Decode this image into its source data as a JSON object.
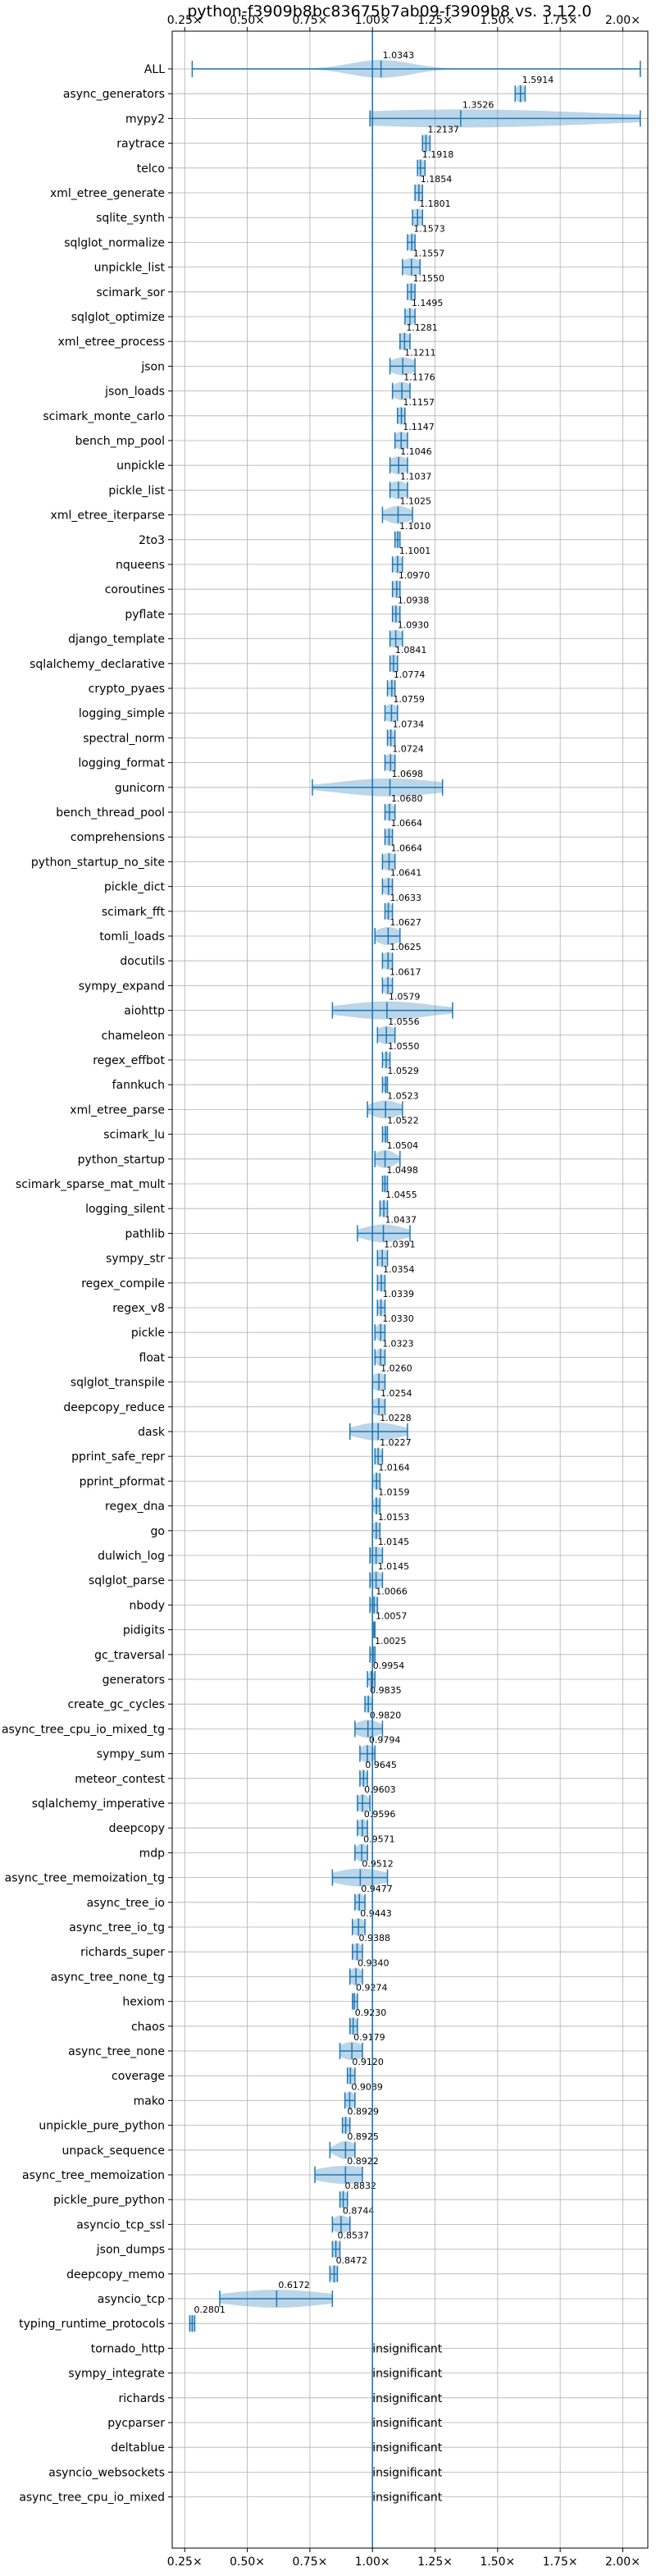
{
  "chart_data": {
    "type": "violin",
    "title": "python-f3909b8bc83675b7ab09-f3909b8 vs. 3.12.0",
    "xlabel": "",
    "ylabel": "",
    "xlim": [
      0.2,
      2.1
    ],
    "x_ticks": [
      0.25,
      0.5,
      0.75,
      1.0,
      1.25,
      1.5,
      1.75,
      2.0
    ],
    "x_tick_labels": [
      "0.25×",
      "0.50×",
      "0.75×",
      "1.00×",
      "1.25×",
      "1.50×",
      "1.75×",
      "2.00×"
    ],
    "reference_line": 1.0,
    "grid": true,
    "colors": {
      "violin": "#1f77b4",
      "reference": "#1f77b4",
      "grid": "#b0b0b0"
    },
    "insignificant_label": "insignificant",
    "benchmarks": [
      {
        "name": "ALL",
        "value": 1.0343,
        "label": "1.0343",
        "min": 0.28,
        "max": 2.07,
        "spread": 0.12
      },
      {
        "name": "async_generators",
        "value": 1.5914,
        "label": "1.5914",
        "min": 1.57,
        "max": 1.61,
        "spread": 0.02
      },
      {
        "name": "mypy2",
        "value": 1.3526,
        "label": "1.3526",
        "min": 0.99,
        "max": 2.07,
        "spread": 0.55
      },
      {
        "name": "raytrace",
        "value": 1.2137,
        "label": "1.2137",
        "min": 1.2,
        "max": 1.23,
        "spread": 0.02
      },
      {
        "name": "telco",
        "value": 1.1918,
        "label": "1.1918",
        "min": 1.18,
        "max": 1.21,
        "spread": 0.02
      },
      {
        "name": "xml_etree_generate",
        "value": 1.1854,
        "label": "1.1854",
        "min": 1.17,
        "max": 1.2,
        "spread": 0.02
      },
      {
        "name": "sqlite_synth",
        "value": 1.1801,
        "label": "1.1801",
        "min": 1.16,
        "max": 1.2,
        "spread": 0.025
      },
      {
        "name": "sqlglot_normalize",
        "value": 1.1573,
        "label": "1.1573",
        "min": 1.14,
        "max": 1.17,
        "spread": 0.02
      },
      {
        "name": "unpickle_list",
        "value": 1.1557,
        "label": "1.1557",
        "min": 1.12,
        "max": 1.19,
        "spread": 0.04
      },
      {
        "name": "scimark_sor",
        "value": 1.155,
        "label": "1.1550",
        "min": 1.14,
        "max": 1.17,
        "spread": 0.02
      },
      {
        "name": "sqlglot_optimize",
        "value": 1.1495,
        "label": "1.1495",
        "min": 1.13,
        "max": 1.17,
        "spread": 0.02
      },
      {
        "name": "xml_etree_process",
        "value": 1.1281,
        "label": "1.1281",
        "min": 1.11,
        "max": 1.15,
        "spread": 0.025
      },
      {
        "name": "json",
        "value": 1.1211,
        "label": "1.1211",
        "min": 1.07,
        "max": 1.17,
        "spread": 0.05
      },
      {
        "name": "json_loads",
        "value": 1.1176,
        "label": "1.1176",
        "min": 1.08,
        "max": 1.15,
        "spread": 0.04
      },
      {
        "name": "scimark_monte_carlo",
        "value": 1.1157,
        "label": "1.1157",
        "min": 1.1,
        "max": 1.13,
        "spread": 0.02
      },
      {
        "name": "bench_mp_pool",
        "value": 1.1147,
        "label": "1.1147",
        "min": 1.09,
        "max": 1.14,
        "spread": 0.03
      },
      {
        "name": "unpickle",
        "value": 1.1046,
        "label": "1.1046",
        "min": 1.07,
        "max": 1.14,
        "spread": 0.04
      },
      {
        "name": "pickle_list",
        "value": 1.1037,
        "label": "1.1037",
        "min": 1.07,
        "max": 1.14,
        "spread": 0.04
      },
      {
        "name": "xml_etree_iterparse",
        "value": 1.1025,
        "label": "1.1025",
        "min": 1.04,
        "max": 1.16,
        "spread": 0.05
      },
      {
        "name": "2to3",
        "value": 1.101,
        "label": "1.1010",
        "min": 1.09,
        "max": 1.11,
        "spread": 0.012
      },
      {
        "name": "nqueens",
        "value": 1.1001,
        "label": "1.1001",
        "min": 1.08,
        "max": 1.12,
        "spread": 0.02
      },
      {
        "name": "coroutines",
        "value": 1.097,
        "label": "1.0970",
        "min": 1.08,
        "max": 1.11,
        "spread": 0.02
      },
      {
        "name": "pyflate",
        "value": 1.0938,
        "label": "1.0938",
        "min": 1.08,
        "max": 1.11,
        "spread": 0.02
      },
      {
        "name": "django_template",
        "value": 1.093,
        "label": "1.0930",
        "min": 1.07,
        "max": 1.12,
        "spread": 0.03
      },
      {
        "name": "sqlalchemy_declarative",
        "value": 1.0841,
        "label": "1.0841",
        "min": 1.07,
        "max": 1.1,
        "spread": 0.02
      },
      {
        "name": "crypto_pyaes",
        "value": 1.0774,
        "label": "1.0774",
        "min": 1.06,
        "max": 1.09,
        "spread": 0.015
      },
      {
        "name": "logging_simple",
        "value": 1.0759,
        "label": "1.0759",
        "min": 1.05,
        "max": 1.1,
        "spread": 0.03
      },
      {
        "name": "spectral_norm",
        "value": 1.0734,
        "label": "1.0734",
        "min": 1.06,
        "max": 1.09,
        "spread": 0.015
      },
      {
        "name": "logging_format",
        "value": 1.0724,
        "label": "1.0724",
        "min": 1.05,
        "max": 1.09,
        "spread": 0.025
      },
      {
        "name": "gunicorn",
        "value": 1.0698,
        "label": "1.0698",
        "min": 0.76,
        "max": 1.28,
        "spread": 0.2
      },
      {
        "name": "bench_thread_pool",
        "value": 1.068,
        "label": "1.0680",
        "min": 1.05,
        "max": 1.09,
        "spread": 0.02
      },
      {
        "name": "comprehensions",
        "value": 1.0664,
        "label": "1.0664",
        "min": 1.05,
        "max": 1.08,
        "spread": 0.02
      },
      {
        "name": "python_startup_no_site",
        "value": 1.0664,
        "label": "1.0664",
        "min": 1.04,
        "max": 1.09,
        "spread": 0.03
      },
      {
        "name": "pickle_dict",
        "value": 1.0641,
        "label": "1.0641",
        "min": 1.04,
        "max": 1.08,
        "spread": 0.025
      },
      {
        "name": "scimark_fft",
        "value": 1.0633,
        "label": "1.0633",
        "min": 1.05,
        "max": 1.08,
        "spread": 0.015
      },
      {
        "name": "tomli_loads",
        "value": 1.0627,
        "label": "1.0627",
        "min": 1.01,
        "max": 1.11,
        "spread": 0.05
      },
      {
        "name": "docutils",
        "value": 1.0625,
        "label": "1.0625",
        "min": 1.04,
        "max": 1.08,
        "spread": 0.025
      },
      {
        "name": "sympy_expand",
        "value": 1.0617,
        "label": "1.0617",
        "min": 1.04,
        "max": 1.08,
        "spread": 0.02
      },
      {
        "name": "aiohttp",
        "value": 1.0579,
        "label": "1.0579",
        "min": 0.84,
        "max": 1.32,
        "spread": 0.18
      },
      {
        "name": "chameleon",
        "value": 1.0556,
        "label": "1.0556",
        "min": 1.02,
        "max": 1.09,
        "spread": 0.04
      },
      {
        "name": "regex_effbot",
        "value": 1.055,
        "label": "1.0550",
        "min": 1.04,
        "max": 1.07,
        "spread": 0.012
      },
      {
        "name": "fannkuch",
        "value": 1.0529,
        "label": "1.0529",
        "min": 1.04,
        "max": 1.06,
        "spread": 0.01
      },
      {
        "name": "xml_etree_parse",
        "value": 1.0523,
        "label": "1.0523",
        "min": 0.98,
        "max": 1.12,
        "spread": 0.06
      },
      {
        "name": "scimark_lu",
        "value": 1.0522,
        "label": "1.0522",
        "min": 1.04,
        "max": 1.06,
        "spread": 0.012
      },
      {
        "name": "python_startup",
        "value": 1.0504,
        "label": "1.0504",
        "min": 1.01,
        "max": 1.11,
        "spread": 0.04
      },
      {
        "name": "scimark_sparse_mat_mult",
        "value": 1.0498,
        "label": "1.0498",
        "min": 1.04,
        "max": 1.06,
        "spread": 0.012
      },
      {
        "name": "logging_silent",
        "value": 1.0455,
        "label": "1.0455",
        "min": 1.03,
        "max": 1.06,
        "spread": 0.015
      },
      {
        "name": "pathlib",
        "value": 1.0437,
        "label": "1.0437",
        "min": 0.94,
        "max": 1.15,
        "spread": 0.08
      },
      {
        "name": "sympy_str",
        "value": 1.0391,
        "label": "1.0391",
        "min": 1.02,
        "max": 1.06,
        "spread": 0.025
      },
      {
        "name": "regex_compile",
        "value": 1.0354,
        "label": "1.0354",
        "min": 1.02,
        "max": 1.05,
        "spread": 0.015
      },
      {
        "name": "regex_v8",
        "value": 1.0339,
        "label": "1.0339",
        "min": 1.02,
        "max": 1.05,
        "spread": 0.012
      },
      {
        "name": "pickle",
        "value": 1.033,
        "label": "1.0330",
        "min": 1.01,
        "max": 1.05,
        "spread": 0.02
      },
      {
        "name": "float",
        "value": 1.0323,
        "label": "1.0323",
        "min": 1.01,
        "max": 1.05,
        "spread": 0.02
      },
      {
        "name": "sqlglot_transpile",
        "value": 1.026,
        "label": "1.0260",
        "min": 1.0,
        "max": 1.05,
        "spread": 0.03
      },
      {
        "name": "deepcopy_reduce",
        "value": 1.0254,
        "label": "1.0254",
        "min": 1.0,
        "max": 1.05,
        "spread": 0.03
      },
      {
        "name": "dask",
        "value": 1.0228,
        "label": "1.0228",
        "min": 0.91,
        "max": 1.14,
        "spread": 0.09
      },
      {
        "name": "pprint_safe_repr",
        "value": 1.0227,
        "label": "1.0227",
        "min": 1.01,
        "max": 1.04,
        "spread": 0.015
      },
      {
        "name": "pprint_pformat",
        "value": 1.0164,
        "label": "1.0164",
        "min": 1.0,
        "max": 1.03,
        "spread": 0.015
      },
      {
        "name": "regex_dna",
        "value": 1.0159,
        "label": "1.0159",
        "min": 1.0,
        "max": 1.03,
        "spread": 0.012
      },
      {
        "name": "go",
        "value": 1.0153,
        "label": "1.0153",
        "min": 1.0,
        "max": 1.03,
        "spread": 0.015
      },
      {
        "name": "dulwich_log",
        "value": 1.0145,
        "label": "1.0145",
        "min": 0.99,
        "max": 1.04,
        "spread": 0.03
      },
      {
        "name": "sqlglot_parse",
        "value": 1.0145,
        "label": "1.0145",
        "min": 0.99,
        "max": 1.04,
        "spread": 0.025
      },
      {
        "name": "nbody",
        "value": 1.0066,
        "label": "1.0066",
        "min": 0.99,
        "max": 1.02,
        "spread": 0.015
      },
      {
        "name": "pidigits",
        "value": 1.0057,
        "label": "1.0057",
        "min": 1.0,
        "max": 1.01,
        "spread": 0.008
      },
      {
        "name": "gc_traversal",
        "value": 1.0025,
        "label": "1.0025",
        "min": 0.99,
        "max": 1.01,
        "spread": 0.01
      },
      {
        "name": "generators",
        "value": 0.9954,
        "label": "0.9954",
        "min": 0.98,
        "max": 1.01,
        "spread": 0.012
      },
      {
        "name": "create_gc_cycles",
        "value": 0.9835,
        "label": "0.9835",
        "min": 0.97,
        "max": 1.0,
        "spread": 0.015
      },
      {
        "name": "async_tree_cpu_io_mixed_tg",
        "value": 0.982,
        "label": "0.9820",
        "min": 0.93,
        "max": 1.04,
        "spread": 0.05
      },
      {
        "name": "sympy_sum",
        "value": 0.9794,
        "label": "0.9794",
        "min": 0.95,
        "max": 1.01,
        "spread": 0.03
      },
      {
        "name": "meteor_contest",
        "value": 0.9645,
        "label": "0.9645",
        "min": 0.95,
        "max": 0.98,
        "spread": 0.012
      },
      {
        "name": "sqlalchemy_imperative",
        "value": 0.9603,
        "label": "0.9603",
        "min": 0.94,
        "max": 0.99,
        "spread": 0.025
      },
      {
        "name": "deepcopy",
        "value": 0.9596,
        "label": "0.9596",
        "min": 0.94,
        "max": 0.98,
        "spread": 0.02
      },
      {
        "name": "mdp",
        "value": 0.9571,
        "label": "0.9571",
        "min": 0.93,
        "max": 0.98,
        "spread": 0.025
      },
      {
        "name": "async_tree_memoization_tg",
        "value": 0.9512,
        "label": "0.9512",
        "min": 0.84,
        "max": 1.06,
        "spread": 0.1
      },
      {
        "name": "async_tree_io",
        "value": 0.9477,
        "label": "0.9477",
        "min": 0.93,
        "max": 0.97,
        "spread": 0.02
      },
      {
        "name": "async_tree_io_tg",
        "value": 0.9443,
        "label": "0.9443",
        "min": 0.92,
        "max": 0.97,
        "spread": 0.025
      },
      {
        "name": "richards_super",
        "value": 0.9388,
        "label": "0.9388",
        "min": 0.92,
        "max": 0.96,
        "spread": 0.02
      },
      {
        "name": "async_tree_none_tg",
        "value": 0.934,
        "label": "0.9340",
        "min": 0.91,
        "max": 0.96,
        "spread": 0.025
      },
      {
        "name": "hexiom",
        "value": 0.9274,
        "label": "0.9274",
        "min": 0.92,
        "max": 0.94,
        "spread": 0.01
      },
      {
        "name": "chaos",
        "value": 0.923,
        "label": "0.9230",
        "min": 0.91,
        "max": 0.94,
        "spread": 0.015
      },
      {
        "name": "async_tree_none",
        "value": 0.9179,
        "label": "0.9179",
        "min": 0.87,
        "max": 0.96,
        "spread": 0.05
      },
      {
        "name": "coverage",
        "value": 0.912,
        "label": "0.9120",
        "min": 0.9,
        "max": 0.93,
        "spread": 0.015
      },
      {
        "name": "mako",
        "value": 0.9089,
        "label": "0.9089",
        "min": 0.89,
        "max": 0.93,
        "spread": 0.02
      },
      {
        "name": "unpickle_pure_python",
        "value": 0.8929,
        "label": "0.8929",
        "min": 0.88,
        "max": 0.91,
        "spread": 0.015
      },
      {
        "name": "unpack_sequence",
        "value": 0.8925,
        "label": "0.8925",
        "min": 0.83,
        "max": 0.93,
        "spread": 0.04
      },
      {
        "name": "async_tree_memoization",
        "value": 0.8922,
        "label": "0.8922",
        "min": 0.77,
        "max": 0.96,
        "spread": 0.12
      },
      {
        "name": "pickle_pure_python",
        "value": 0.8832,
        "label": "0.8832",
        "min": 0.87,
        "max": 0.9,
        "spread": 0.015
      },
      {
        "name": "asyncio_tcp_ssl",
        "value": 0.8744,
        "label": "0.8744",
        "min": 0.84,
        "max": 0.91,
        "spread": 0.035
      },
      {
        "name": "json_dumps",
        "value": 0.8537,
        "label": "0.8537",
        "min": 0.84,
        "max": 0.87,
        "spread": 0.015
      },
      {
        "name": "deepcopy_memo",
        "value": 0.8472,
        "label": "0.8472",
        "min": 0.83,
        "max": 0.86,
        "spread": 0.015
      },
      {
        "name": "asyncio_tcp",
        "value": 0.6172,
        "label": "0.6172",
        "min": 0.39,
        "max": 0.84,
        "spread": 0.2
      },
      {
        "name": "typing_runtime_protocols",
        "value": 0.2801,
        "label": "0.2801",
        "min": 0.27,
        "max": 0.29,
        "spread": 0.01
      },
      {
        "name": "tornado_http",
        "insignificant": true
      },
      {
        "name": "sympy_integrate",
        "insignificant": true
      },
      {
        "name": "richards",
        "insignificant": true
      },
      {
        "name": "pycparser",
        "insignificant": true
      },
      {
        "name": "deltablue",
        "insignificant": true
      },
      {
        "name": "asyncio_websockets",
        "insignificant": true
      },
      {
        "name": "async_tree_cpu_io_mixed",
        "insignificant": true
      }
    ]
  }
}
